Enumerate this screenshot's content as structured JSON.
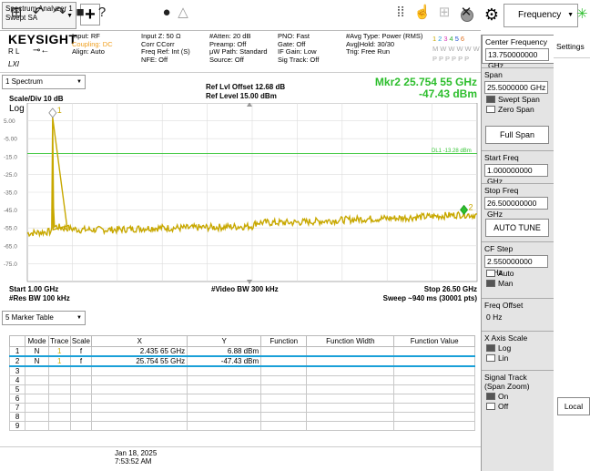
{
  "tab": {
    "line1": "Spectrum Analyzer 1",
    "line2": "Swept SA"
  },
  "add_label": "+",
  "logo": "KEYSIGHT",
  "rl": "R L",
  "lxi": "LXI",
  "antenna": "⊸←",
  "info": {
    "col1": [
      "Input: RF",
      "Coupling: DC",
      "Align: Auto"
    ],
    "col2": [
      "Input Z: 50 Ω",
      "Corr CCorr",
      "Freq Ref: Int (S)",
      "NFE: Off"
    ],
    "col3": [
      "#Atten: 20 dB",
      "Preamp: Off",
      "μW Path: Standard",
      "Source: Off"
    ],
    "col4": [
      "PNO: Fast",
      "Gate: Off",
      "IF Gain: Low",
      "Sig Track: Off"
    ],
    "col5": [
      "#Avg Type: Power (RMS)",
      "Avg|Hold: 30/30",
      "Trig: Free Run"
    ],
    "trace_nums": [
      "1",
      "2",
      "3",
      "4",
      "5",
      "6"
    ],
    "trace_types": [
      "M",
      "W",
      "W",
      "W",
      "W",
      "W"
    ],
    "trace_dets": [
      "P",
      "P",
      "P",
      "P",
      "P",
      "P"
    ]
  },
  "spectrum": {
    "selector": "1 Spectrum",
    "ref_offset": "Ref Lvl Offset 12.68 dB",
    "ref_level": "Ref Level 15.00 dBm",
    "mkr_freq": "Mkr2  25.754 55 GHz",
    "mkr_amp": "-47.43 dBm",
    "scale": "Scale/Div 10 dB",
    "log": "Log",
    "dl_label": "DL1 -13.28 dBm",
    "start": "Start 1.00 GHz",
    "res_bw": "#Res BW 100 kHz",
    "vbw": "#Video BW 300 kHz",
    "stop": "Stop 26.50 GHz",
    "sweep": "Sweep ~940 ms (30001 pts)"
  },
  "chart_data": {
    "type": "line",
    "title": "",
    "xlabel": "",
    "ylabel": "",
    "x_range_ghz": [
      1.0,
      26.5
    ],
    "ylim": [
      -85,
      15
    ],
    "y_ticks": [
      "5.00",
      "-5.00",
      "-15.0",
      "-25.0",
      "-35.0",
      "-45.0",
      "-55.0",
      "-65.0",
      "-75.0"
    ],
    "display_line_dbm": -13.28,
    "series": [
      {
        "x": [
          1.0,
          2.4,
          2.43565,
          2.5,
          3,
          4,
          6,
          8,
          10,
          12,
          13.75,
          14,
          16,
          18,
          20,
          22,
          24,
          25.75455,
          26.5
        ],
        "y": [
          -58,
          -57,
          6.88,
          -54,
          -55,
          -56,
          -56,
          -55,
          -55,
          -54.5,
          -54,
          -52,
          -52,
          -51,
          -50,
          -49.5,
          -48.5,
          -47.43,
          -48
        ]
      }
    ],
    "markers": [
      {
        "id": "1",
        "x": 2.43565,
        "y": 6.88
      },
      {
        "id": "2",
        "x": 25.75455,
        "y": -47.43
      }
    ]
  },
  "marker_table": {
    "selector": "5 Marker Table",
    "headers": [
      "",
      "Mode",
      "Trace",
      "Scale",
      "X",
      "Y",
      "Function",
      "Function Width",
      "Function Value"
    ],
    "rows": [
      [
        "1",
        "N",
        "1",
        "f",
        "2.435 65 GHz",
        "6.88 dBm",
        "",
        "",
        ""
      ],
      [
        "2",
        "N",
        "1",
        "f",
        "25.754 55 GHz",
        "-47.43 dBm",
        "",
        "",
        ""
      ],
      [
        "3",
        "",
        "",
        "",
        "",
        "",
        "",
        "",
        ""
      ],
      [
        "4",
        "",
        "",
        "",
        "",
        "",
        "",
        "",
        ""
      ],
      [
        "5",
        "",
        "",
        "",
        "",
        "",
        "",
        "",
        ""
      ],
      [
        "6",
        "",
        "",
        "",
        "",
        "",
        "",
        "",
        ""
      ],
      [
        "7",
        "",
        "",
        "",
        "",
        "",
        "",
        "",
        ""
      ],
      [
        "8",
        "",
        "",
        "",
        "",
        "",
        "",
        "",
        ""
      ],
      [
        "9",
        "",
        "",
        "",
        "",
        "",
        "",
        "",
        ""
      ]
    ]
  },
  "taskbar": {
    "date": "Jan 18, 2025",
    "time": "7:53:52 AM"
  },
  "right": {
    "freq_menu": "Frequency",
    "settings_tab": "Settings",
    "center_label": "Center Frequency",
    "center_value": "13.750000000 GHz",
    "span_label": "Span",
    "span_value": "25.5000000 GHz",
    "swept_span": "Swept Span",
    "zero_span": "Zero Span",
    "full_span": "Full Span",
    "start_label": "Start Freq",
    "start_value": "1.000000000 GHz",
    "stop_label": "Stop Freq",
    "stop_value": "26.500000000 GHz",
    "auto_tune": "AUTO TUNE",
    "cf_step_label": "CF Step",
    "cf_step_value": "2.550000000 GHz",
    "auto": "Auto",
    "man": "Man",
    "freq_offset_label": "Freq Offset",
    "freq_offset_value": "0 Hz",
    "xaxis_label": "X Axis Scale",
    "log": "Log",
    "lin": "Lin",
    "signal_track_label": "Signal Track",
    "signal_track_sub": "(Span Zoom)",
    "on": "On",
    "off": "Off",
    "local": "Local"
  },
  "colors": {
    "trace": "#c8a800",
    "marker": "#2dbe2d",
    "display_line": "#33c433",
    "selection": "#1aa0d8"
  }
}
